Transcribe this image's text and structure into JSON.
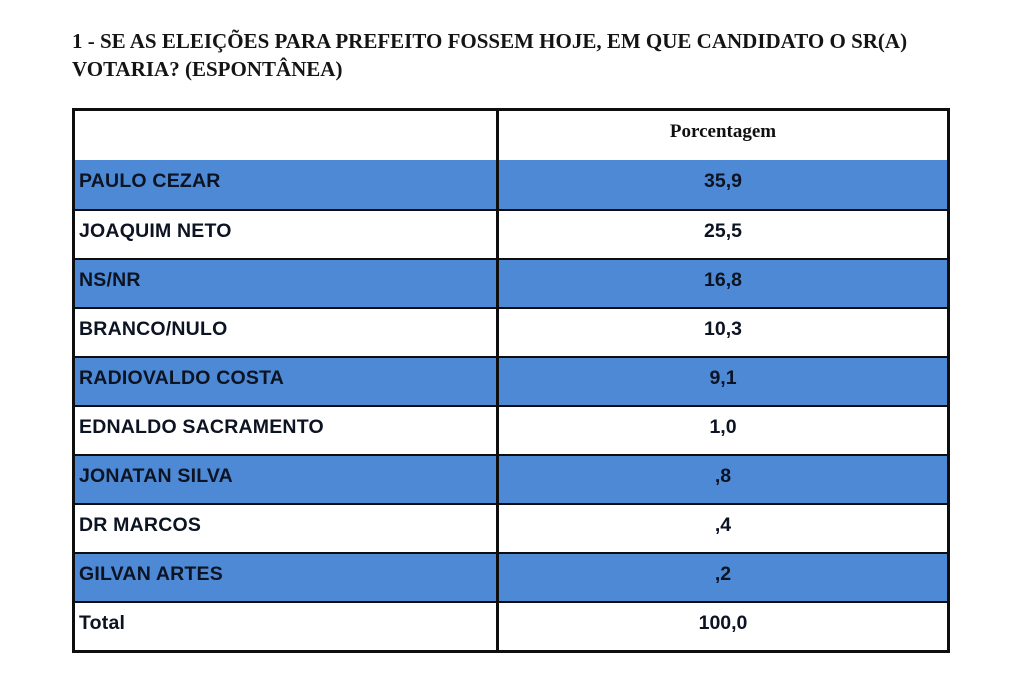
{
  "page": {
    "title": "1 - SE AS ELEIÇÕES PARA PREFEITO FOSSEM HOJE, EM QUE CANDIDATO O SR(A) VOTARIA? (ESPONTÂNEA)"
  },
  "table": {
    "header": {
      "label_column": "",
      "value_column": "Porcentagem"
    },
    "rows": [
      {
        "label": "PAULO CEZAR",
        "value": "35,9",
        "highlighted": true
      },
      {
        "label": "JOAQUIM NETO",
        "value": "25,5",
        "highlighted": false
      },
      {
        "label": "NS/NR",
        "value": "16,8",
        "highlighted": true
      },
      {
        "label": "BRANCO/NULO",
        "value": "10,3",
        "highlighted": false
      },
      {
        "label": "RADIOVALDO COSTA",
        "value": "9,1",
        "highlighted": true
      },
      {
        "label": "EDNALDO SACRAMENTO",
        "value": "1,0",
        "highlighted": false
      },
      {
        "label": "JONATAN SILVA",
        "value": ",8",
        "highlighted": true
      },
      {
        "label": "DR MARCOS",
        "value": ",4",
        "highlighted": false
      },
      {
        "label": "GILVAN ARTES",
        "value": ",2",
        "highlighted": true
      },
      {
        "label": "Total",
        "value": "100,0",
        "highlighted": false
      }
    ]
  },
  "chart_data": {
    "type": "table",
    "title": "1 - SE AS ELEIÇÕES PARA PREFEITO FOSSEM HOJE, EM QUE CANDIDATO O SR(A) VOTARIA? (ESPONTÂNEA)",
    "columns": [
      "",
      "Porcentagem"
    ],
    "categories": [
      "PAULO CEZAR",
      "JOAQUIM NETO",
      "NS/NR",
      "BRANCO/NULO",
      "RADIOVALDO COSTA",
      "EDNALDO SACRAMENTO",
      "JONATAN SILVA",
      "DR MARCOS",
      "GILVAN ARTES",
      "Total"
    ],
    "values": [
      35.9,
      25.5,
      16.8,
      10.3,
      9.1,
      1.0,
      0.8,
      0.4,
      0.2,
      100.0
    ],
    "value_labels": [
      "35,9",
      "25,5",
      "16,8",
      "10,3",
      "9,1",
      "1,0",
      ",8",
      ",4",
      ",2",
      "100,0"
    ],
    "layout_hints": {
      "row_striping": "alternating highlight starting at first data row",
      "value_alignment": "center",
      "label_alignment": "left"
    }
  },
  "colors": {
    "highlight_blue": "#4d89d4",
    "border_black": "#0e0e0e",
    "text_dark": "#0c1322",
    "background": "#ffffff"
  }
}
